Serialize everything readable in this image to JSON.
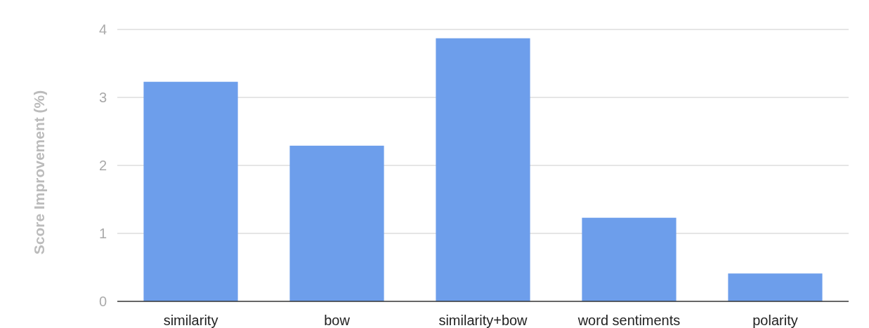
{
  "chart_data": {
    "type": "bar",
    "ylabel": "Score Improvement (%)",
    "categories": [
      "similarity",
      "bow",
      "similarity+bow",
      "word sentiments",
      "polarity"
    ],
    "values": [
      3.23,
      2.29,
      3.87,
      1.23,
      0.41
    ],
    "color": "#6d9eeb",
    "ylim": [
      0,
      4
    ],
    "yticks": [
      0,
      1,
      2,
      3,
      4
    ],
    "grid": "y"
  }
}
